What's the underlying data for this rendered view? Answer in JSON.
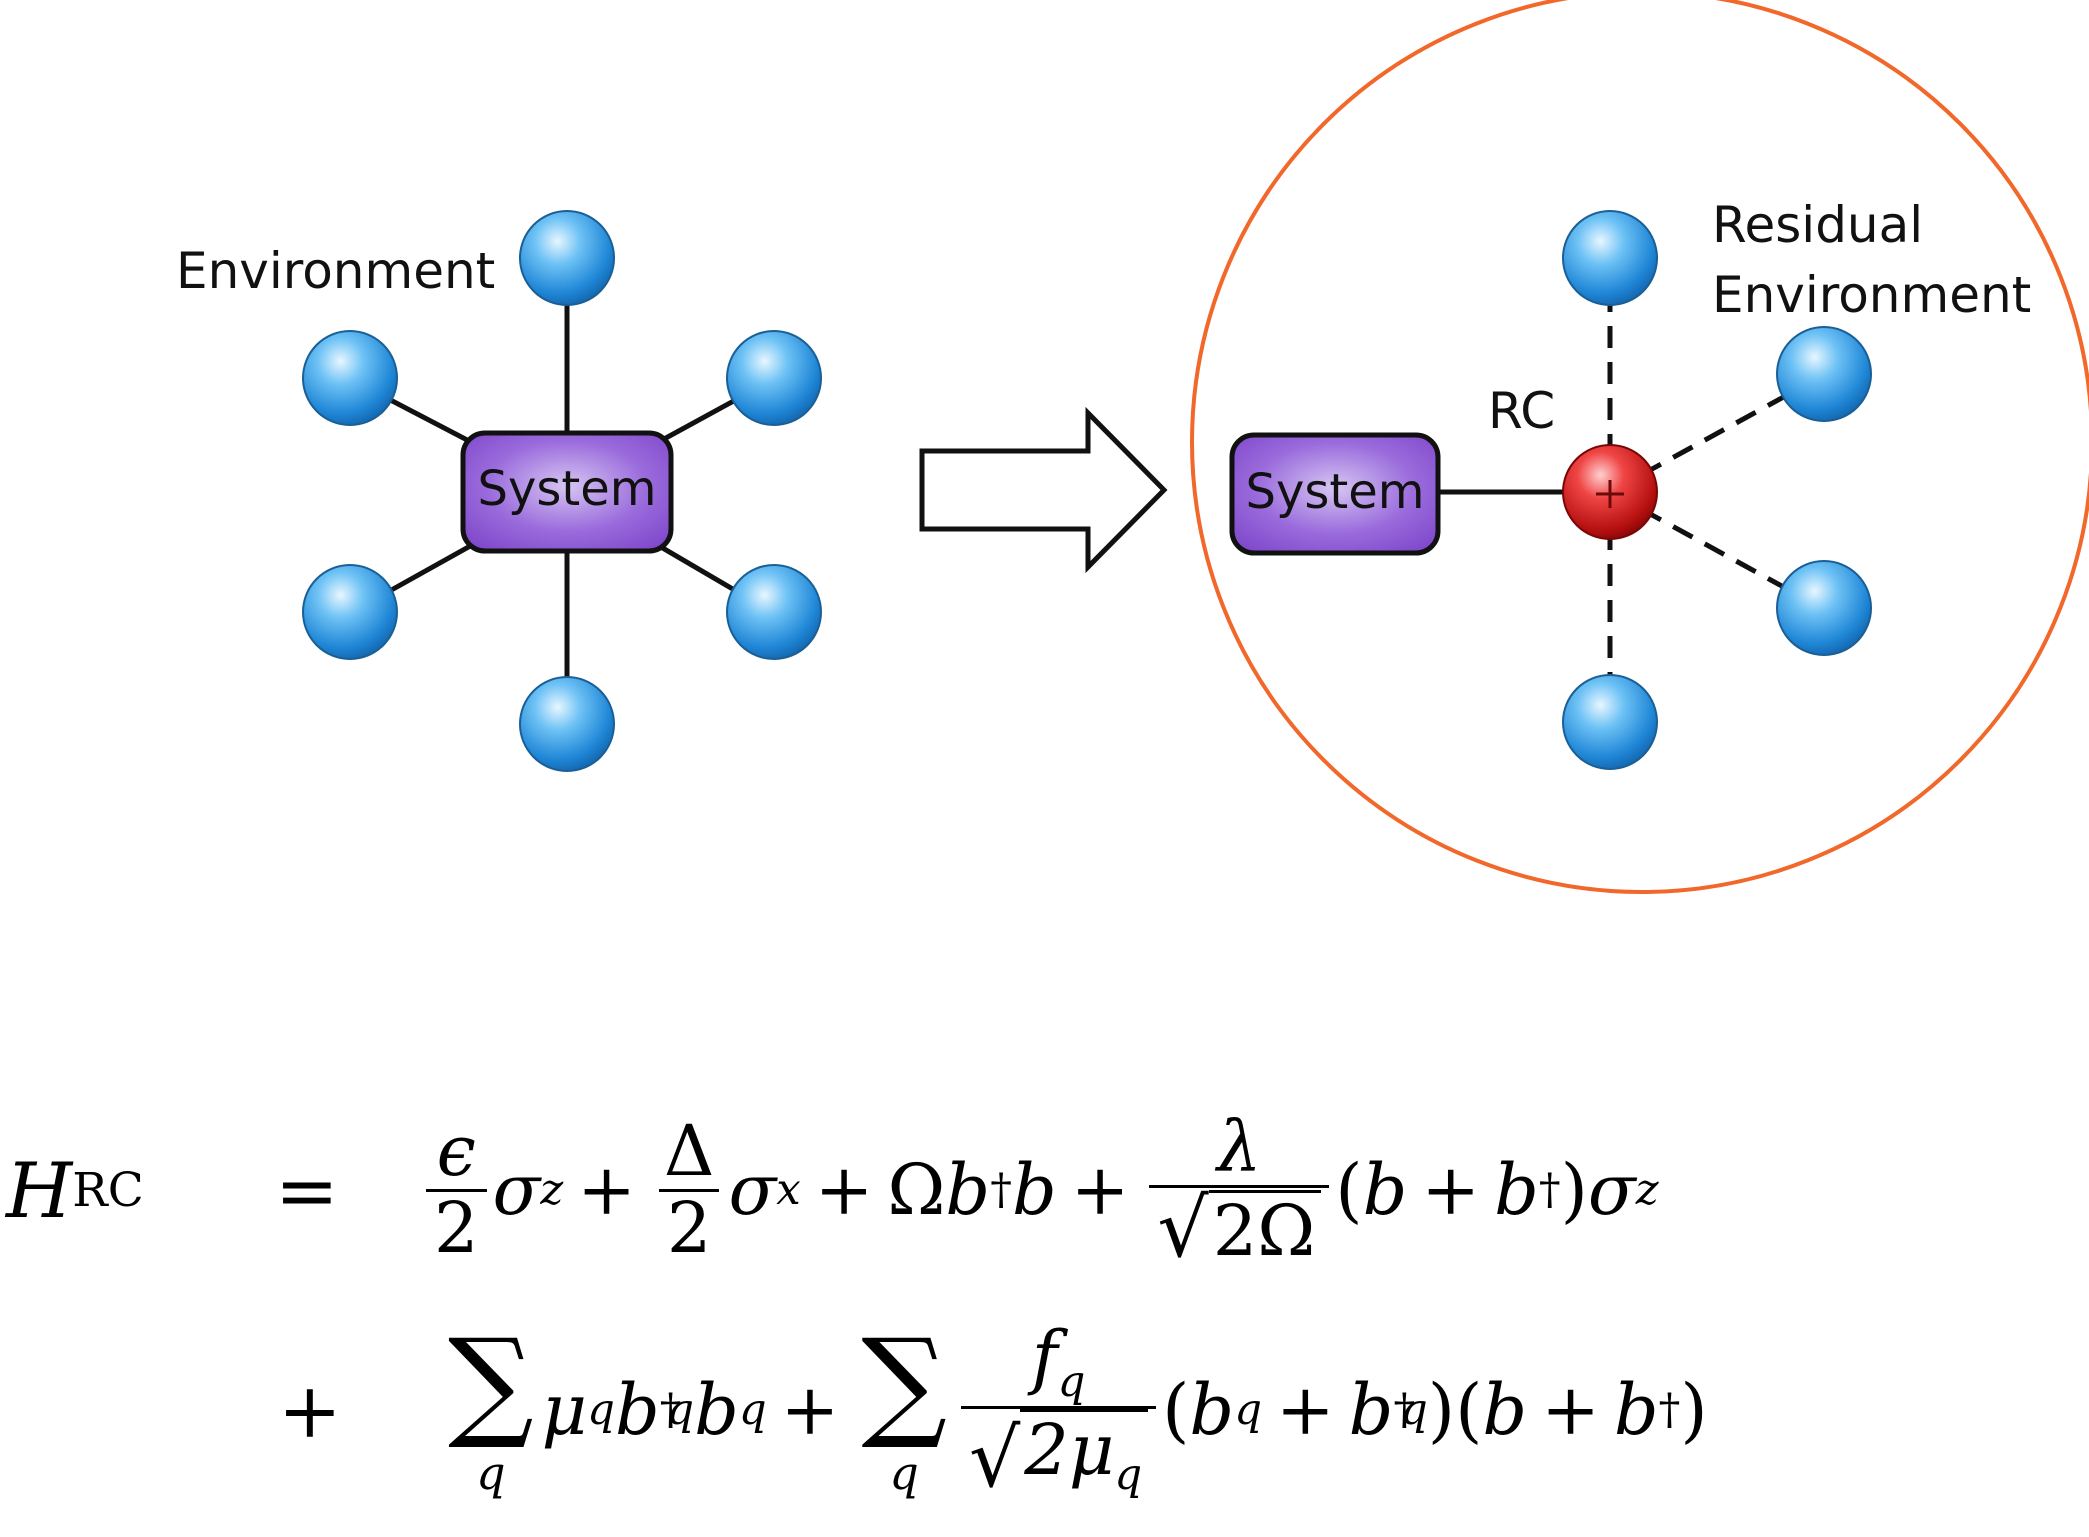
{
  "diagram": {
    "left": {
      "environment_label": "Environment",
      "system_label": "System"
    },
    "right": {
      "residual_label_line1": "Residual",
      "residual_label_line2": "Environment",
      "rc_label": "RC",
      "system_label": "System"
    },
    "colors": {
      "system_fill": "#8b58d4",
      "environment_node": "#3aa0e6",
      "rc_node": "#d81c1c",
      "circle_outline": "#f2672a"
    }
  },
  "equation": {
    "lhs_symbol": "H",
    "lhs_subscript": "RC",
    "equals": "=",
    "plus": "+",
    "epsilon": "ϵ",
    "delta": "Δ",
    "two": "2",
    "sigma": "σ",
    "z": "z",
    "x": "x",
    "omega": "Ω",
    "b": "b",
    "dagger": "†",
    "lambda": "λ",
    "sqrt": "√",
    "two_omega": "2Ω",
    "lparen": "(",
    "rparen": ")",
    "sum": "∑",
    "q": "q",
    "mu": "μ",
    "f": "f",
    "two_mu": "2μ"
  }
}
